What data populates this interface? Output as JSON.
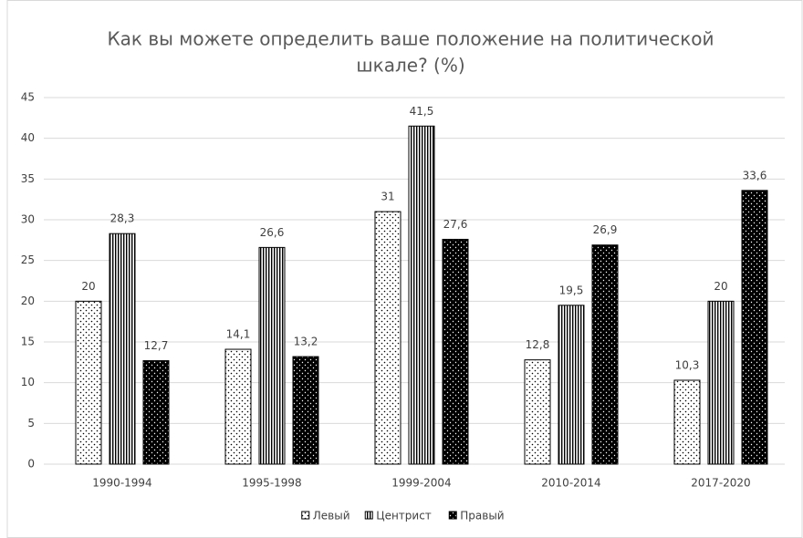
{
  "chart_data": {
    "type": "bar",
    "title": [
      "Как вы можете определить ваше положение на политической",
      "шкале? (%)"
    ],
    "categories": [
      "1990-1994",
      "1995-1998",
      "1999-2004",
      "2010-2014",
      "2017-2020"
    ],
    "series": [
      {
        "name": "Левый",
        "color": "#000000",
        "pattern": "dots",
        "values": [
          20,
          14.1,
          31,
          12.8,
          10.3
        ],
        "value_labels": [
          "20",
          "14,1",
          "31",
          "12,8",
          "10,3"
        ]
      },
      {
        "name": "Центрист",
        "color": "#000000",
        "pattern": "vertical-lines",
        "values": [
          28.3,
          26.6,
          41.5,
          19.5,
          20
        ],
        "value_labels": [
          "28,3",
          "26,6",
          "41,5",
          "19,5",
          "20"
        ]
      },
      {
        "name": "Правый",
        "color": "#000000",
        "pattern": "inverse-dots",
        "values": [
          12.7,
          13.2,
          27.6,
          26.9,
          33.6
        ],
        "value_labels": [
          "12,7",
          "13,2",
          "27,6",
          "26,9",
          "33,6"
        ]
      }
    ],
    "ylim": [
      0,
      45
    ],
    "yticks": [
      0,
      5,
      10,
      15,
      20,
      25,
      30,
      35,
      40,
      45
    ],
    "grid": true,
    "legend": "bottom"
  }
}
